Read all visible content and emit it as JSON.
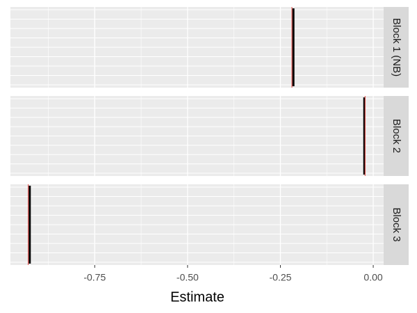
{
  "chart_data": {
    "type": "facet-estimate",
    "x_label": "Estimate",
    "xlim": [
      -0.977,
      0.028
    ],
    "xticks": [
      {
        "value": -0.75,
        "label": "-0.75"
      },
      {
        "value": -0.5,
        "label": "-0.50"
      },
      {
        "value": -0.25,
        "label": "-0.25"
      },
      {
        "value": 0,
        "label": "0.00"
      }
    ],
    "xminor": [
      -0.875,
      -0.625,
      -0.375,
      -0.125
    ],
    "estimate_color": "#000000",
    "reference_color": "#e8413c",
    "facets": [
      {
        "label": "Block 1 (NB)",
        "estimate": -0.215,
        "reference": -0.219
      },
      {
        "label": "Block 2",
        "estimate": -0.024,
        "reference": -0.022
      },
      {
        "label": "Block 3",
        "estimate": -0.925,
        "reference": -0.929
      }
    ]
  }
}
